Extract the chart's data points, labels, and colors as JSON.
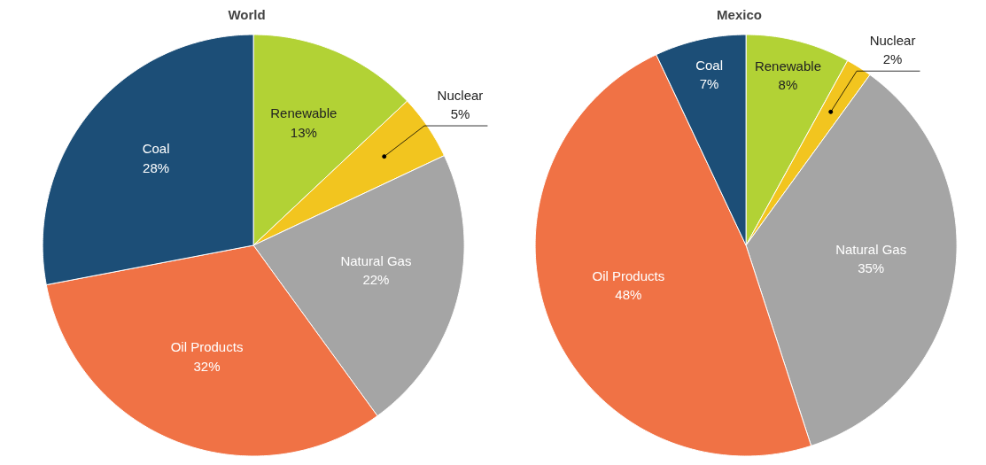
{
  "chart_data": [
    {
      "type": "pie",
      "title": "World",
      "categories": [
        "Renewable",
        "Nuclear",
        "Natural Gas",
        "Oil Products",
        "Coal"
      ],
      "values": [
        13,
        5,
        22,
        32,
        28
      ],
      "value_labels": [
        "13%",
        "5%",
        "22%",
        "32%",
        "28%"
      ],
      "colors": [
        "#b2d235",
        "#f2c51f",
        "#a5a5a5",
        "#f07245",
        "#1c4e77"
      ]
    },
    {
      "type": "pie",
      "title": "Mexico",
      "categories": [
        "Renewable",
        "Nuclear",
        "Natural Gas",
        "Oil Products",
        "Coal"
      ],
      "values": [
        8,
        2,
        35,
        48,
        7
      ],
      "value_labels": [
        "8%",
        "2%",
        "35%",
        "48%",
        "7%"
      ],
      "colors": [
        "#b2d235",
        "#f2c51f",
        "#a5a5a5",
        "#f07245",
        "#1c4e77"
      ]
    }
  ]
}
